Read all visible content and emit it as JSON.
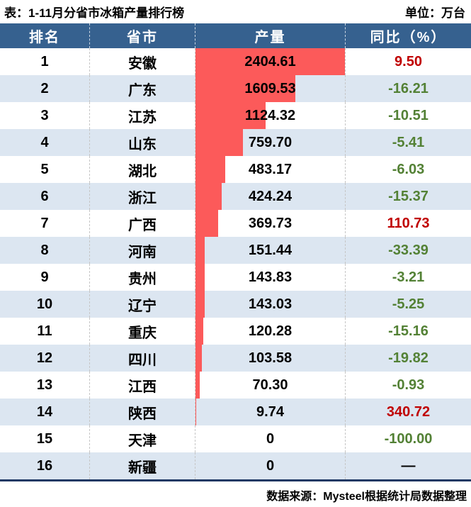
{
  "page": {
    "title": "表：1-11月分省市冰箱产量排行榜",
    "unit": "单位：万台",
    "source": "数据来源：Mysteel根据统计局数据整理"
  },
  "colors": {
    "header_bg": "#36618F",
    "alt_row_bg": "#DCE6F1",
    "bar": "#FC5A5A",
    "positive_text": "#C00000",
    "negative_text": "#538135",
    "bottom_border": "#1F3864"
  },
  "table": {
    "headers": [
      "排名",
      "省市",
      "产量",
      "同比（%）"
    ],
    "max_output": 2404.61,
    "rows": [
      {
        "rank": "1",
        "province": "安徽",
        "output": "2404.61",
        "output_value": 2404.61,
        "yoy": "9.50",
        "yoy_sign": "up"
      },
      {
        "rank": "2",
        "province": "广东",
        "output": "1609.53",
        "output_value": 1609.53,
        "yoy": "-16.21",
        "yoy_sign": "down"
      },
      {
        "rank": "3",
        "province": "江苏",
        "output": "1124.32",
        "output_value": 1124.32,
        "yoy": "-10.51",
        "yoy_sign": "down"
      },
      {
        "rank": "4",
        "province": "山东",
        "output": "759.70",
        "output_value": 759.7,
        "yoy": "-5.41",
        "yoy_sign": "down"
      },
      {
        "rank": "5",
        "province": "湖北",
        "output": "483.17",
        "output_value": 483.17,
        "yoy": "-6.03",
        "yoy_sign": "down"
      },
      {
        "rank": "6",
        "province": "浙江",
        "output": "424.24",
        "output_value": 424.24,
        "yoy": "-15.37",
        "yoy_sign": "down"
      },
      {
        "rank": "7",
        "province": "广西",
        "output": "369.73",
        "output_value": 369.73,
        "yoy": "110.73",
        "yoy_sign": "up"
      },
      {
        "rank": "8",
        "province": "河南",
        "output": "151.44",
        "output_value": 151.44,
        "yoy": "-33.39",
        "yoy_sign": "down"
      },
      {
        "rank": "9",
        "province": "贵州",
        "output": "143.83",
        "output_value": 143.83,
        "yoy": "-3.21",
        "yoy_sign": "down"
      },
      {
        "rank": "10",
        "province": "辽宁",
        "output": "143.03",
        "output_value": 143.03,
        "yoy": "-5.25",
        "yoy_sign": "down"
      },
      {
        "rank": "11",
        "province": "重庆",
        "output": "120.28",
        "output_value": 120.28,
        "yoy": "-15.16",
        "yoy_sign": "down"
      },
      {
        "rank": "12",
        "province": "四川",
        "output": "103.58",
        "output_value": 103.58,
        "yoy": "-19.82",
        "yoy_sign": "down"
      },
      {
        "rank": "13",
        "province": "江西",
        "output": "70.30",
        "output_value": 70.3,
        "yoy": "-0.93",
        "yoy_sign": "down"
      },
      {
        "rank": "14",
        "province": "陕西",
        "output": "9.74",
        "output_value": 9.74,
        "yoy": "340.72",
        "yoy_sign": "up"
      },
      {
        "rank": "15",
        "province": "天津",
        "output": "0",
        "output_value": 0,
        "yoy": "-100.00",
        "yoy_sign": "down"
      },
      {
        "rank": "16",
        "province": "新疆",
        "output": "0",
        "output_value": 0,
        "yoy": "—",
        "yoy_sign": "none"
      }
    ]
  },
  "chart_data": {
    "type": "bar",
    "orientation": "horizontal",
    "title": "表：1-11月分省市冰箱产量排行榜",
    "unit": "万台",
    "categories": [
      "安徽",
      "广东",
      "江苏",
      "山东",
      "湖北",
      "浙江",
      "广西",
      "河南",
      "贵州",
      "辽宁",
      "重庆",
      "四川",
      "江西",
      "陕西",
      "天津",
      "新疆"
    ],
    "series": [
      {
        "name": "产量",
        "values": [
          2404.61,
          1609.53,
          1124.32,
          759.7,
          483.17,
          424.24,
          369.73,
          151.44,
          143.83,
          143.03,
          120.28,
          103.58,
          70.3,
          9.74,
          0,
          0
        ]
      },
      {
        "name": "同比（%）",
        "values": [
          9.5,
          -16.21,
          -10.51,
          -5.41,
          -6.03,
          -15.37,
          110.73,
          -33.39,
          -3.21,
          -5.25,
          -15.16,
          -19.82,
          -0.93,
          340.72,
          -100.0,
          null
        ]
      }
    ],
    "xlim": [
      0,
      2404.61
    ],
    "legend_position": "none",
    "grid": false,
    "source": "数据来源：Mysteel根据统计局数据整理"
  }
}
